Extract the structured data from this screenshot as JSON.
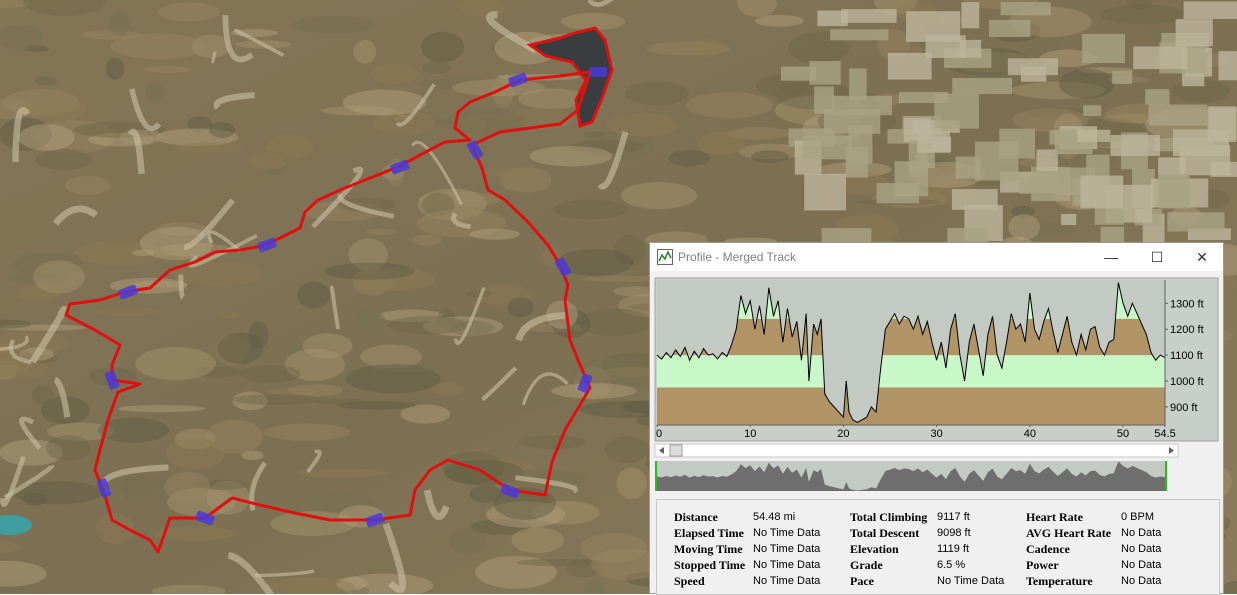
{
  "window": {
    "title": "Profile - Merged Track",
    "stats": [
      {
        "label": "Distance",
        "value": "54.48 mi"
      },
      {
        "label": "Elapsed Time",
        "value": "No Time Data"
      },
      {
        "label": "Moving Time",
        "value": "No Time Data"
      },
      {
        "label": "Stopped Time",
        "value": "No Time Data"
      },
      {
        "label": "Speed",
        "value": "No Time Data"
      },
      {
        "label": "Total Climbing",
        "value": "9117 ft"
      },
      {
        "label": "Total Descent",
        "value": "9098 ft"
      },
      {
        "label": "Elevation",
        "value": "1119 ft"
      },
      {
        "label": "Grade",
        "value": "6.5 %"
      },
      {
        "label": "Pace",
        "value": "No Time Data"
      },
      {
        "label": "Heart Rate",
        "value": "0 BPM"
      },
      {
        "label": "AVG Heart Rate",
        "value": "No Data"
      },
      {
        "label": "Cadence",
        "value": "No Data"
      },
      {
        "label": "Power",
        "value": "No Data"
      },
      {
        "label": "Temperature",
        "value": "No Data"
      }
    ]
  },
  "chart_data": {
    "type": "area",
    "x": [
      0,
      0.5,
      1,
      1.5,
      2,
      2.5,
      3,
      3.5,
      4,
      4.5,
      5,
      5.5,
      6,
      6.5,
      7,
      7.5,
      8,
      8.5,
      9,
      9.5,
      10,
      10.5,
      11,
      11.5,
      12,
      12.5,
      13,
      13.5,
      14,
      14.5,
      15,
      15.5,
      16,
      16.3,
      16.8,
      17.2,
      17.6,
      18,
      18.5,
      19,
      19.5,
      20,
      20.3,
      20.6,
      21,
      21.5,
      22,
      22.5,
      23,
      23.5,
      24,
      24.5,
      25,
      25.5,
      26,
      26.5,
      27,
      27.5,
      28,
      28.5,
      29,
      29.5,
      30,
      30.5,
      31,
      31.5,
      32,
      32.5,
      33,
      33.5,
      34,
      34.5,
      35,
      35.5,
      36,
      36.5,
      37,
      37.5,
      38,
      38.5,
      39,
      39.5,
      40,
      40.5,
      41,
      41.5,
      42,
      42.5,
      43,
      43.5,
      44,
      44.5,
      45,
      45.5,
      46,
      46.5,
      47,
      47.5,
      48,
      48.5,
      49,
      49.5,
      50,
      50.5,
      51,
      51.5,
      52,
      52.5,
      53,
      53.5,
      54,
      54.5
    ],
    "series": [
      {
        "name": "Elevation",
        "color": "#000000",
        "values": [
          1100,
          1085,
          1110,
          1090,
          1120,
          1095,
          1130,
          1080,
          1115,
          1090,
          1125,
          1100,
          1105,
          1085,
          1110,
          1095,
          1140,
          1200,
          1330,
          1260,
          1310,
          1200,
          1290,
          1180,
          1360,
          1250,
          1310,
          1150,
          1280,
          1170,
          1230,
          1080,
          1260,
          1000,
          1220,
          1180,
          1240,
          950,
          920,
          900,
          880,
          860,
          1000,
          880,
          850,
          840,
          850,
          860,
          900,
          880,
          1050,
          1200,
          1230,
          1260,
          1220,
          1250,
          1240,
          1200,
          1250,
          1180,
          1230,
          1150,
          1080,
          1150,
          1050,
          1200,
          1260,
          1100,
          1000,
          1150,
          1220,
          1120,
          1020,
          1180,
          1250,
          1100,
          1050,
          1150,
          1260,
          1200,
          1220,
          1150,
          1340,
          1200,
          1160,
          1230,
          1280,
          1190,
          1110,
          1180,
          1250,
          1150,
          1100,
          1180,
          1120,
          1200,
          1210,
          1130,
          1100,
          1150,
          1160,
          1380,
          1300,
          1250,
          1300,
          1260,
          1220,
          1180,
          1110,
          1080,
          1100,
          1090
        ]
      }
    ],
    "bands": [
      {
        "from": 830,
        "to": 975,
        "color": "#b09466"
      },
      {
        "from": 975,
        "to": 1100,
        "color": "#c8f7c8"
      },
      {
        "from": 1100,
        "to": 1240,
        "color": "#b09466"
      },
      {
        "from": 1240,
        "to": 1390,
        "color": "#c8f7c8"
      }
    ],
    "background": "#c3cac3",
    "xlim": [
      0,
      54.5
    ],
    "xticks": [
      0,
      10,
      20,
      30,
      40,
      50,
      54.5
    ],
    "ylim": [
      830,
      1390
    ],
    "yticks": [
      {
        "value": 900,
        "label": "900 ft"
      },
      {
        "value": 1000,
        "label": "1000 ft"
      },
      {
        "value": 1100,
        "label": "1100 ft"
      },
      {
        "value": 1200,
        "label": "1200 ft"
      },
      {
        "value": 1300,
        "label": "1300 ft"
      }
    ]
  }
}
